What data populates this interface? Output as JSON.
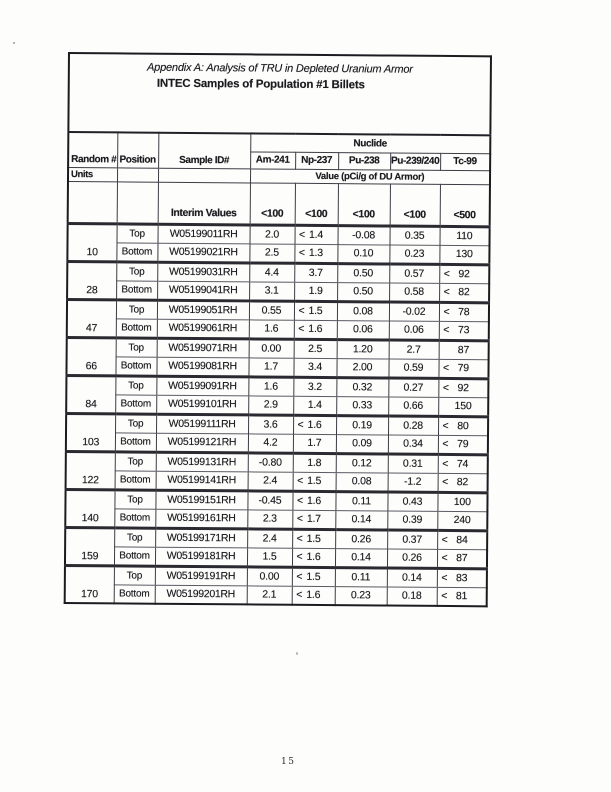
{
  "doc": {
    "title_line1": "Appendix A: Analysis of TRU in Depleted Uranium Armor",
    "title_line2": "INTEC Samples of Population #1 Billets",
    "page_number": "15"
  },
  "colors": {
    "ink": "#1b1b1f",
    "paper": "#fdfdfc"
  },
  "table": {
    "headers": {
      "random": "Random #",
      "units": "Units",
      "position": "Position",
      "sample_id": "Sample ID#",
      "nuclide": "Nuclide",
      "value_caption": "Value (pCi/g of DU Armor)",
      "interim_label": "Interim Values",
      "isotopes": [
        "Am-241",
        "Np-237",
        "Pu-238",
        "Pu-239/240",
        "Tc-99"
      ],
      "interim_values": [
        "<100",
        "<100",
        "<100",
        "<100",
        "<500"
      ]
    },
    "groups": [
      {
        "random": "10",
        "rows": [
          {
            "position": "Top",
            "sample": "W05199011RH",
            "am241": "2.0",
            "np237": "< 1.4",
            "pu238": "-0.08",
            "pu239240": "0.35",
            "tc99": "110"
          },
          {
            "position": "Bottom",
            "sample": "W05199021RH",
            "am241": "2.5",
            "np237": "< 1.3",
            "pu238": "0.10",
            "pu239240": "0.23",
            "tc99": "130"
          }
        ]
      },
      {
        "random": "28",
        "rows": [
          {
            "position": "Top",
            "sample": "W05199031RH",
            "am241": "4.4",
            "np237": "3.7",
            "pu238": "0.50",
            "pu239240": "0.57",
            "tc99": "< 92"
          },
          {
            "position": "Bottom",
            "sample": "W05199041RH",
            "am241": "3.1",
            "np237": "1.9",
            "pu238": "0.50",
            "pu239240": "0.58",
            "tc99": "< 82"
          }
        ]
      },
      {
        "random": "47",
        "rows": [
          {
            "position": "Top",
            "sample": "W05199051RH",
            "am241": "0.55",
            "np237": "< 1.5",
            "pu238": "0.08",
            "pu239240": "-0.02",
            "tc99": "< 78"
          },
          {
            "position": "Bottom",
            "sample": "W05199061RH",
            "am241": "1.6",
            "np237": "< 1.6",
            "pu238": "0.06",
            "pu239240": "0.06",
            "tc99": "< 73"
          }
        ]
      },
      {
        "random": "66",
        "rows": [
          {
            "position": "Top",
            "sample": "W05199071RH",
            "am241": "0.00",
            "np237": "2.5",
            "pu238": "1.20",
            "pu239240": "2.7",
            "tc99": "87"
          },
          {
            "position": "Bottom",
            "sample": "W05199081RH",
            "am241": "1.7",
            "np237": "3.4",
            "pu238": "2.00",
            "pu239240": "0.59",
            "tc99": "< 79"
          }
        ]
      },
      {
        "random": "84",
        "rows": [
          {
            "position": "Top",
            "sample": "W05199091RH",
            "am241": "1.6",
            "np237": "3.2",
            "pu238": "0.32",
            "pu239240": "0.27",
            "tc99": "< 92"
          },
          {
            "position": "Bottom",
            "sample": "W05199101RH",
            "am241": "2.9",
            "np237": "1.4",
            "pu238": "0.33",
            "pu239240": "0.66",
            "tc99": "150"
          }
        ]
      },
      {
        "random": "103",
        "rows": [
          {
            "position": "Top",
            "sample": "W05199111RH",
            "am241": "3.6",
            "np237": "< 1.6",
            "pu238": "0.19",
            "pu239240": "0.28",
            "tc99": "< 80"
          },
          {
            "position": "Bottom",
            "sample": "W05199121RH",
            "am241": "4.2",
            "np237": "1.7",
            "pu238": "0.09",
            "pu239240": "0.34",
            "tc99": "< 79"
          }
        ]
      },
      {
        "random": "122",
        "rows": [
          {
            "position": "Top",
            "sample": "W05199131RH",
            "am241": "-0.80",
            "np237": "1.8",
            "pu238": "0.12",
            "pu239240": "0.31",
            "tc99": "< 74"
          },
          {
            "position": "Bottom",
            "sample": "W05199141RH",
            "am241": "2.4",
            "np237": "< 1.5",
            "pu238": "0.08",
            "pu239240": "-1.2",
            "tc99": "< 82"
          }
        ]
      },
      {
        "random": "140",
        "rows": [
          {
            "position": "Top",
            "sample": "W05199151RH",
            "am241": "-0.45",
            "np237": "< 1.6",
            "pu238": "0.11",
            "pu239240": "0.43",
            "tc99": "100"
          },
          {
            "position": "Bottom",
            "sample": "W05199161RH",
            "am241": "2.3",
            "np237": "< 1.7",
            "pu238": "0.14",
            "pu239240": "0.39",
            "tc99": "240"
          }
        ]
      },
      {
        "random": "159",
        "rows": [
          {
            "position": "Top",
            "sample": "W05199171RH",
            "am241": "2.4",
            "np237": "< 1.5",
            "pu238": "0.26",
            "pu239240": "0.37",
            "tc99": "< 84"
          },
          {
            "position": "Bottom",
            "sample": "W05199181RH",
            "am241": "1.5",
            "np237": "< 1.6",
            "pu238": "0.14",
            "pu239240": "0.26",
            "tc99": "< 87"
          }
        ]
      },
      {
        "random": "170",
        "rows": [
          {
            "position": "Top",
            "sample": "W05199191RH",
            "am241": "0.00",
            "np237": "< 1.5",
            "pu238": "0.11",
            "pu239240": "0.14",
            "tc99": "< 83"
          },
          {
            "position": "Bottom",
            "sample": "W05199201RH",
            "am241": "2.1",
            "np237": "< 1.6",
            "pu238": "0.23",
            "pu239240": "0.18",
            "tc99": "< 81"
          }
        ]
      }
    ]
  }
}
